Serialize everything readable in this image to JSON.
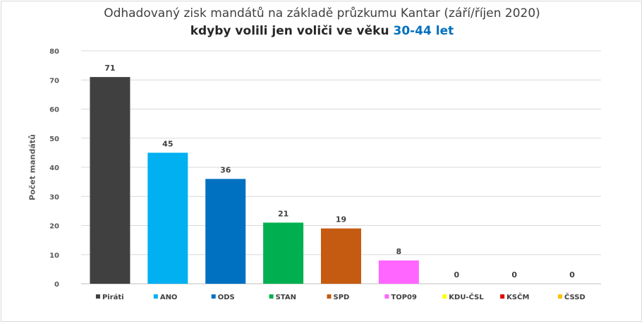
{
  "chart_data": {
    "type": "bar",
    "title": "Odhadovaný zisk mandátů na základě průzkumu Kantar (září/říjen 2020)",
    "subtitle_prefix": "kdyby volili jen voliči ve věku",
    "subtitle_highlight": "30-44 let",
    "ylabel": "Počet mandátů",
    "xlabel": "",
    "ylim": [
      0,
      80
    ],
    "yticks": [
      0,
      10,
      20,
      30,
      40,
      50,
      60,
      70,
      80
    ],
    "grid": true,
    "legend_position": "bottom",
    "categories": [
      "Piráti",
      "ANO",
      "ODS",
      "STAN",
      "SPD",
      "TOP09",
      "KDU-ČSL",
      "KSČM",
      "ČSSD"
    ],
    "values": [
      71,
      45,
      36,
      21,
      19,
      8,
      0,
      0,
      0
    ],
    "colors": [
      "#404040",
      "#00b0f0",
      "#0070c0",
      "#00b050",
      "#c55a11",
      "#ff66ff",
      "#ffff00",
      "#e00000",
      "#ffc000"
    ]
  }
}
